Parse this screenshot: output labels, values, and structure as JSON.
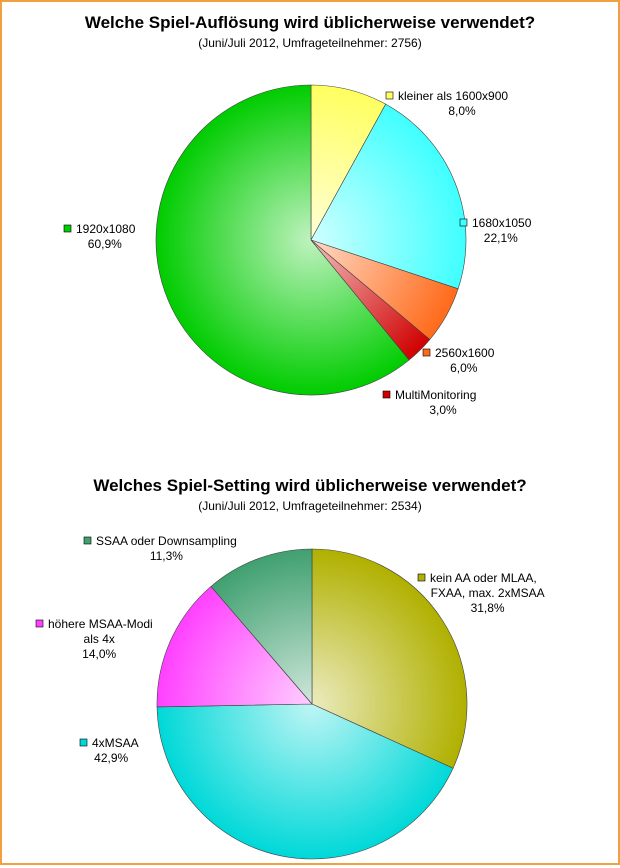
{
  "chart_data": [
    {
      "type": "pie",
      "title": "Welche Spiel-Auflösung wird üblicherweise verwendet?",
      "subtitle": "(Juni/Juli 2012, Umfrageteilnehmer: 2756)",
      "slices": [
        {
          "label_lines": [
            "kleiner als 1600x900"
          ],
          "value": 8.0,
          "value_label": "8,0%",
          "color": "#ffff60"
        },
        {
          "label_lines": [
            "1680x1050"
          ],
          "value": 22.1,
          "value_label": "22,1%",
          "color": "#40ffff"
        },
        {
          "label_lines": [
            "2560x1600"
          ],
          "value": 6.0,
          "value_label": "6,0%",
          "color": "#ff6a1a"
        },
        {
          "label_lines": [
            "MultiMonitoring"
          ],
          "value": 3.0,
          "value_label": "3,0%",
          "color": "#d00000"
        },
        {
          "label_lines": [
            "1920x1080"
          ],
          "value": 60.9,
          "value_label": "60,9%",
          "color": "#00cc00"
        }
      ]
    },
    {
      "type": "pie",
      "title": "Welches Spiel-Setting wird üblicherweise verwendet?",
      "subtitle": "(Juni/Juli 2012, Umfrageteilnehmer: 2534)",
      "slices": [
        {
          "label_lines": [
            "kein AA oder MLAA,",
            "FXAA, max. 2xMSAA"
          ],
          "value": 31.8,
          "value_label": "31,8%",
          "color": "#b0b000"
        },
        {
          "label_lines": [
            "4xMSAA"
          ],
          "value": 42.9,
          "value_label": "42,9%",
          "color": "#00d8d8"
        },
        {
          "label_lines": [
            "höhere MSAA-Modi",
            "als 4x"
          ],
          "value": 14.0,
          "value_label": "14,0%",
          "color": "#ff40ff"
        },
        {
          "label_lines": [
            "SSAA oder Downsampling"
          ],
          "value": 11.3,
          "value_label": "11,3%",
          "color": "#40a070"
        }
      ]
    }
  ]
}
